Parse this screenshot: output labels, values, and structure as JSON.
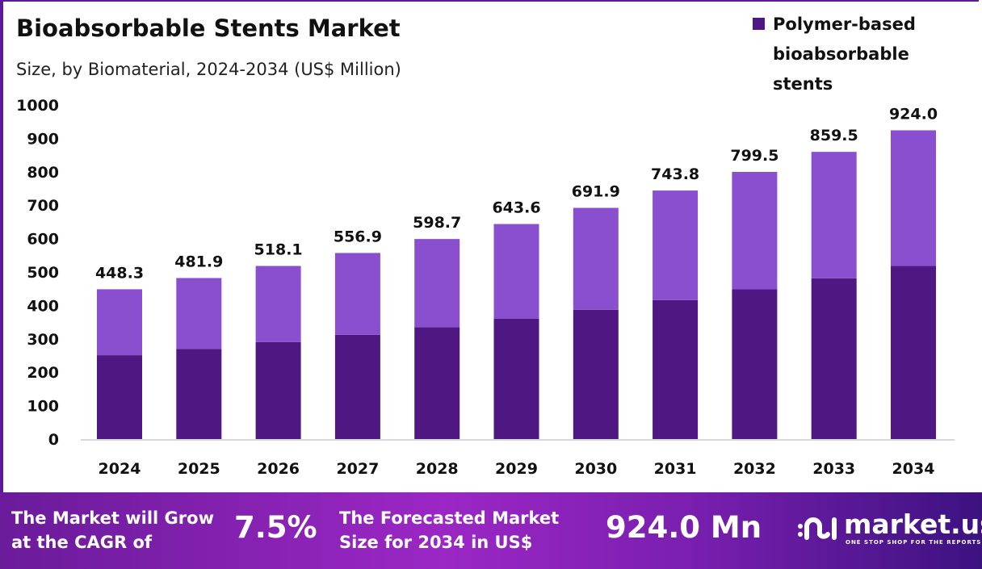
{
  "chart_data": {
    "type": "bar",
    "stacked": true,
    "title": "Bioabsorbable Stents Market",
    "subtitle": "Size, by Biomaterial, 2024-2034 (US$ Million)",
    "categories": [
      "2024",
      "2025",
      "2026",
      "2027",
      "2028",
      "2029",
      "2030",
      "2031",
      "2032",
      "2033",
      "2034"
    ],
    "series": [
      {
        "name": "Polymer-based bioabsorbable stents",
        "color": "#4f1782",
        "values": [
          251,
          270,
          290,
          312,
          335,
          360,
          387,
          416,
          448,
          481,
          518
        ]
      },
      {
        "color": "#8a4fcf",
        "values": [
          197.3,
          211.9,
          228.1,
          244.9,
          263.7,
          283.6,
          304.9,
          327.8,
          351.5,
          378.5,
          406.0
        ]
      }
    ],
    "totals": [
      "448.3",
      "481.9",
      "518.1",
      "556.9",
      "598.7",
      "643.6",
      "691.9",
      "743.8",
      "799.5",
      "859.5",
      "924.0"
    ],
    "total_values": [
      448.3,
      481.9,
      518.1,
      556.9,
      598.7,
      643.6,
      691.9,
      743.8,
      799.5,
      859.5,
      924.0
    ],
    "ylim": [
      0,
      1000
    ],
    "yticks": [
      "0",
      "100",
      "200",
      "300",
      "400",
      "500",
      "600",
      "700",
      "800",
      "900",
      "1000"
    ],
    "grid": false,
    "legend_position": "top-right"
  },
  "footer": {
    "cagr_label": [
      "The Market will Grow",
      "at the CAGR of"
    ],
    "cagr_value": "7.5%",
    "forecast_label": [
      "The Forecasted Market",
      "Size for 2034 in US$"
    ],
    "forecast_value": "924.0 Mn",
    "brand": "market.us",
    "brand_tagline": "ONE STOP SHOP FOR THE REPORTS"
  }
}
